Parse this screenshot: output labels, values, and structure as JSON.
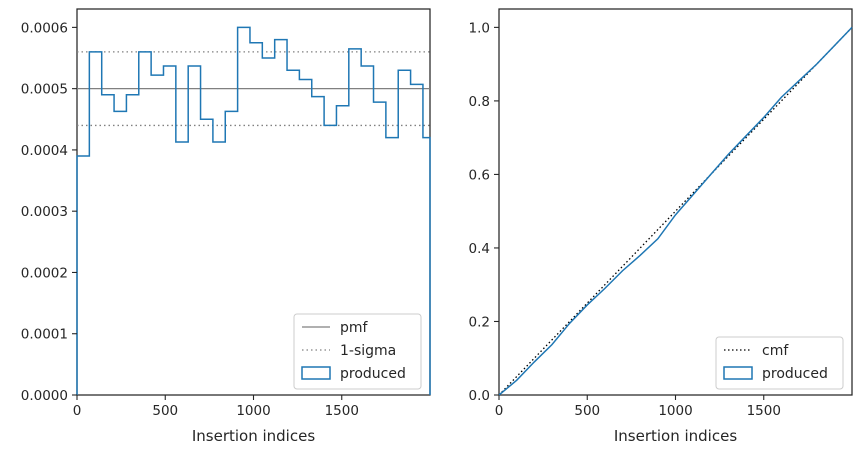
{
  "chart_data": [
    {
      "type": "histogram",
      "xlabel": "Insertion indices",
      "ylabel": "",
      "xlim": [
        0,
        2000
      ],
      "ylim": [
        0,
        0.00063
      ],
      "xticks": [
        0,
        500,
        1000,
        1500
      ],
      "xtick_labels": [
        "0",
        "500",
        "1000",
        "1500"
      ],
      "yticks": [
        0,
        0.0001,
        0.0002,
        0.0003,
        0.0004,
        0.0005,
        0.0006
      ],
      "ytick_labels": [
        "0.0000",
        "0.0001",
        "0.0002",
        "0.0003",
        "0.0004",
        "0.0005",
        "0.0006"
      ],
      "legend_position": "lower-right",
      "pmf": {
        "label": "pmf",
        "value": 0.0005,
        "color": "#808080"
      },
      "sigma": {
        "label": "1-sigma",
        "values": [
          0.00044,
          0.00056
        ],
        "color": "#808080"
      },
      "series": [
        {
          "name": "produced",
          "color": "#1f77b4",
          "bin_edges": [
            0,
            70,
            140,
            210,
            280,
            350,
            420,
            490,
            560,
            630,
            700,
            770,
            840,
            910,
            980,
            1050,
            1120,
            1190,
            1260,
            1330,
            1400,
            1470,
            1540,
            1610,
            1680,
            1750,
            1820,
            1890,
            1960,
            2000
          ],
          "values": [
            0.00039,
            0.00056,
            0.00049,
            0.000463,
            0.00049,
            0.00056,
            0.000522,
            0.000537,
            0.000413,
            0.000537,
            0.00045,
            0.000413,
            0.000463,
            0.0006,
            0.000575,
            0.00055,
            0.00058,
            0.00053,
            0.000515,
            0.000487,
            0.00044,
            0.000472,
            0.000565,
            0.000537,
            0.000478,
            0.00042,
            0.00053,
            0.000507,
            0.00042
          ]
        }
      ]
    },
    {
      "type": "line",
      "xlabel": "Insertion indices",
      "ylabel": "",
      "xlim": [
        0,
        2000
      ],
      "ylim": [
        0,
        1.05
      ],
      "xticks": [
        0,
        500,
        1000,
        1500
      ],
      "xtick_labels": [
        "0",
        "500",
        "1000",
        "1500"
      ],
      "yticks": [
        0,
        0.2,
        0.4,
        0.6,
        0.8,
        1.0
      ],
      "ytick_labels": [
        "0.0",
        "0.2",
        "0.4",
        "0.6",
        "0.8",
        "1.0"
      ],
      "legend_position": "lower-right",
      "series": [
        {
          "name": "cmf",
          "style": "dotted",
          "color": "#000000",
          "x": [
            0,
            2000
          ],
          "y": [
            0,
            1
          ]
        },
        {
          "name": "produced",
          "style": "solid",
          "color": "#1f77b4",
          "x": [
            0,
            100,
            200,
            300,
            400,
            500,
            600,
            700,
            800,
            900,
            1000,
            1100,
            1200,
            1300,
            1400,
            1500,
            1600,
            1700,
            1800,
            1900,
            2000
          ],
          "y": [
            0,
            0.04,
            0.09,
            0.137,
            0.195,
            0.245,
            0.29,
            0.338,
            0.38,
            0.425,
            0.49,
            0.545,
            0.6,
            0.655,
            0.705,
            0.755,
            0.81,
            0.855,
            0.9,
            0.95,
            1.0
          ]
        }
      ]
    }
  ]
}
